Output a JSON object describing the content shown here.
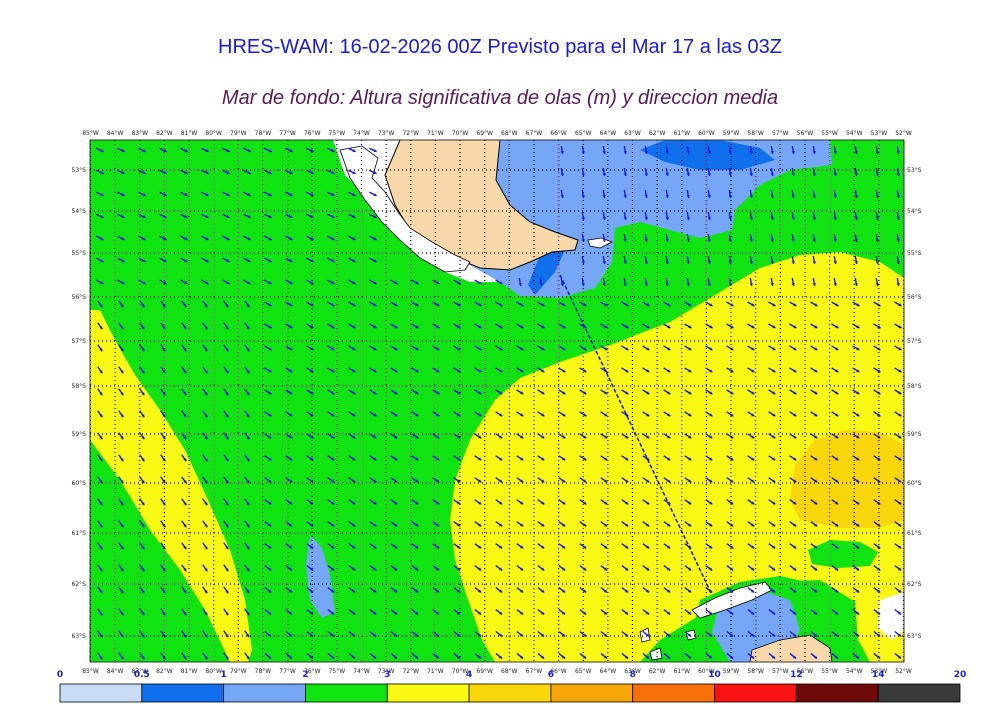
{
  "title": "HRES-WAM: 16-02-2026 00Z Previsto para el Mar 17 a las 03Z",
  "subtitle": "Mar de fondo: Altura significativa de olas (m) y direccion media",
  "map": {
    "lon_labels": [
      "85°W",
      "84°W",
      "83°W",
      "82°W",
      "81°W",
      "80°W",
      "79°W",
      "78°W",
      "77°W",
      "76°W",
      "75°W",
      "74°W",
      "73°W",
      "72°W",
      "71°W",
      "70°W",
      "69°W",
      "68°W",
      "67°W",
      "66°W",
      "65°W",
      "64°W",
      "63°W",
      "62°W",
      "61°W",
      "60°W",
      "59°W",
      "58°W",
      "57°W",
      "56°W",
      "55°W",
      "54°W",
      "53°W",
      "52°W"
    ],
    "lat_labels": [
      "53°S",
      "54°S",
      "55°S",
      "56°S",
      "57°S",
      "58°S",
      "59°S",
      "60°S",
      "61°S",
      "62°S",
      "63°S"
    ],
    "colors": {
      "land": "#f8d7a8",
      "c05_1": "#0f6fec",
      "c1_2": "#76a6f6",
      "c2_3": "#10e410",
      "c3_4": "#f8f812",
      "c4_6": "#f8d60a",
      "arrow": "#1a1adc"
    }
  },
  "colorbar": {
    "labels": [
      "0",
      "0.5",
      "1",
      "2",
      "3",
      "4",
      "6",
      "8",
      "10",
      "12",
      "14",
      "20"
    ],
    "colors": [
      "#c8dcf6",
      "#0f6fec",
      "#76a6f6",
      "#10e410",
      "#f8f812",
      "#f8d60a",
      "#f8a70a",
      "#f8700a",
      "#f81212",
      "#6e0a0a",
      "#3a3a3a"
    ]
  }
}
